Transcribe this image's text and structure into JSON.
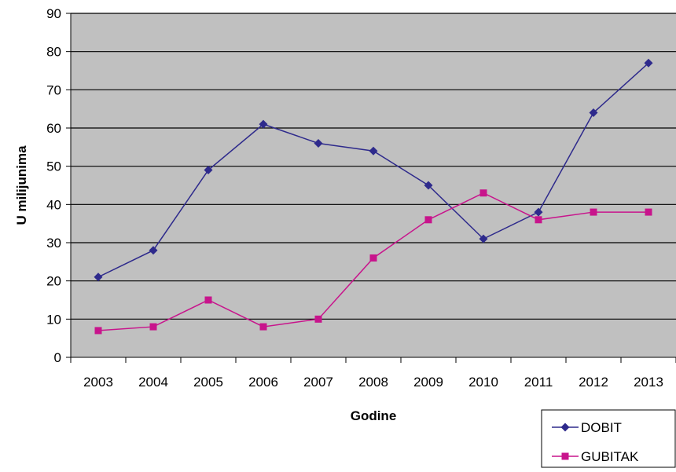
{
  "chart_data": {
    "type": "line",
    "title": "",
    "xlabel": "Godine",
    "ylabel": "U milijunima",
    "categories": [
      "2003",
      "2004",
      "2005",
      "2006",
      "2007",
      "2008",
      "2009",
      "2010",
      "2011",
      "2012",
      "2013"
    ],
    "ylim": [
      0,
      90
    ],
    "yticks": [
      "0",
      "10",
      "20",
      "30",
      "40",
      "50",
      "60",
      "70",
      "80",
      "90"
    ],
    "grid": true,
    "plot_background": "#c0c0c0",
    "legend_position": "bottom-right",
    "series": [
      {
        "name": "DOBIT",
        "color": "#2e2a8c",
        "marker": "diamond",
        "values": [
          21,
          28,
          49,
          61,
          56,
          54,
          45,
          31,
          38,
          64,
          77
        ]
      },
      {
        "name": "GUBITAK",
        "color": "#c8148c",
        "marker": "square",
        "values": [
          7,
          8,
          15,
          8,
          10,
          26,
          36,
          43,
          36,
          38,
          38
        ]
      }
    ]
  }
}
